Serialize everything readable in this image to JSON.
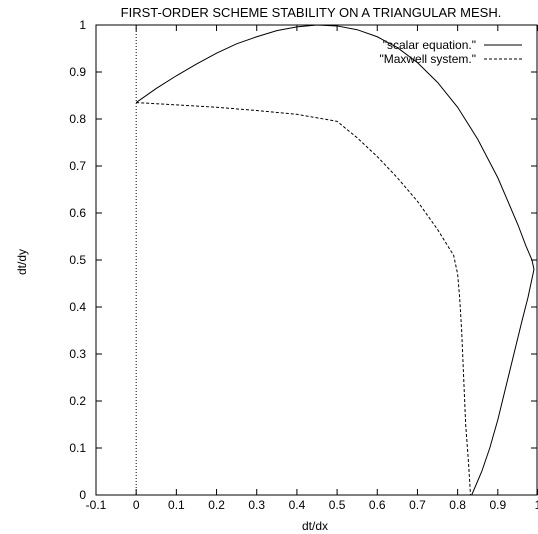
{
  "chart_data": {
    "type": "line",
    "title": "FIRST-ORDER SCHEME STABILITY ON A TRIANGULAR MESH.",
    "xlabel": "dt/dx",
    "ylabel": "dt/dy",
    "xlim": [
      -0.1,
      1
    ],
    "ylim": [
      0,
      1
    ],
    "xticks": [
      -0.1,
      0,
      0.1,
      0.2,
      0.3,
      0.4,
      0.5,
      0.6,
      0.7,
      0.8,
      0.9,
      1
    ],
    "xtick_labels": [
      "-0.1",
      "0",
      "0.1",
      "0.2",
      "0.3",
      "0.4",
      "0.5",
      "0.6",
      "0.7",
      "0.8",
      "0.9",
      "1"
    ],
    "yticks": [
      0,
      0.1,
      0.2,
      0.3,
      0.4,
      0.5,
      0.6,
      0.7,
      0.8,
      0.9,
      1
    ],
    "ytick_labels": [
      "0",
      "0.1",
      "0.2",
      "0.3",
      "0.4",
      "0.5",
      "0.6",
      "0.7",
      "0.8",
      "0.9",
      "1"
    ],
    "grid": false,
    "legend_position": "top-right",
    "zero_axis_x": 0,
    "series": [
      {
        "name": "\"scalar equation.\"",
        "style": "solid",
        "points": [
          [
            0,
            0.835
          ],
          [
            0.05,
            0.865
          ],
          [
            0.1,
            0.892
          ],
          [
            0.15,
            0.917
          ],
          [
            0.2,
            0.94
          ],
          [
            0.25,
            0.96
          ],
          [
            0.3,
            0.975
          ],
          [
            0.35,
            0.988
          ],
          [
            0.4,
            0.996
          ],
          [
            0.45,
            1.0
          ],
          [
            0.5,
            0.998
          ],
          [
            0.55,
            0.99
          ],
          [
            0.6,
            0.975
          ],
          [
            0.65,
            0.952
          ],
          [
            0.7,
            0.92
          ],
          [
            0.75,
            0.878
          ],
          [
            0.8,
            0.825
          ],
          [
            0.85,
            0.757
          ],
          [
            0.9,
            0.675
          ],
          [
            0.95,
            0.575
          ],
          [
            0.97,
            0.53
          ],
          [
            0.985,
            0.5
          ],
          [
            0.99,
            0.48
          ],
          [
            0.975,
            0.42
          ],
          [
            0.96,
            0.37
          ],
          [
            0.94,
            0.3
          ],
          [
            0.92,
            0.23
          ],
          [
            0.9,
            0.16
          ],
          [
            0.88,
            0.1
          ],
          [
            0.86,
            0.05
          ],
          [
            0.835,
            0
          ]
        ]
      },
      {
        "name": "\"Maxwell system.\"",
        "style": "dashed",
        "points": [
          [
            0,
            0.835
          ],
          [
            0.1,
            0.83
          ],
          [
            0.2,
            0.825
          ],
          [
            0.3,
            0.818
          ],
          [
            0.4,
            0.81
          ],
          [
            0.5,
            0.795
          ],
          [
            0.55,
            0.76
          ],
          [
            0.6,
            0.72
          ],
          [
            0.65,
            0.675
          ],
          [
            0.7,
            0.625
          ],
          [
            0.75,
            0.565
          ],
          [
            0.79,
            0.51
          ],
          [
            0.8,
            0.47
          ],
          [
            0.805,
            0.42
          ],
          [
            0.81,
            0.35
          ],
          [
            0.815,
            0.25
          ],
          [
            0.82,
            0.15
          ],
          [
            0.827,
            0.07
          ],
          [
            0.832,
            0
          ]
        ]
      }
    ]
  }
}
